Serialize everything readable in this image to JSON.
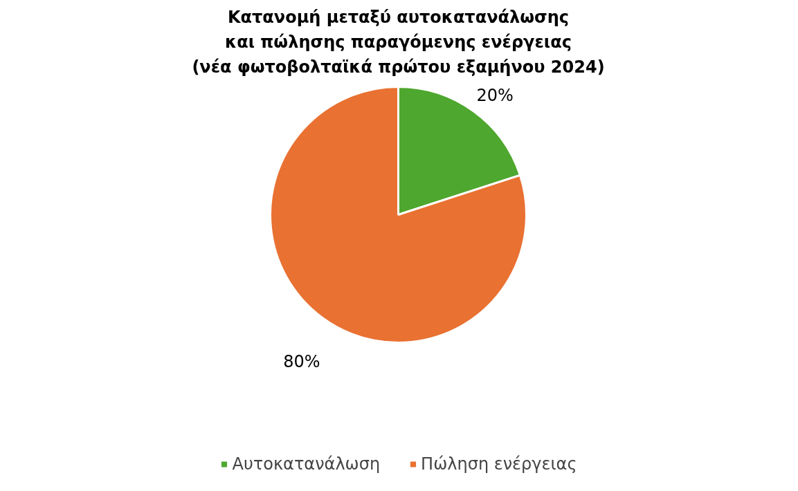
{
  "chart_data": {
    "type": "pie",
    "title": "Κατανομή μεταξύ αυτοκατανάλωσης\nκαι πώλησης παραγόμενης ενέργειας\n(νέα φωτοβολταϊκά πρώτου εξαμήνου 2024)",
    "categories": [
      "Αυτοκατανάλωση",
      "Πώληση ενέργειας"
    ],
    "values": [
      20,
      80
    ],
    "colors": [
      "#4ea72e",
      "#e97132"
    ],
    "value_labels": [
      "20%",
      "80%"
    ],
    "legend": "bottom"
  }
}
